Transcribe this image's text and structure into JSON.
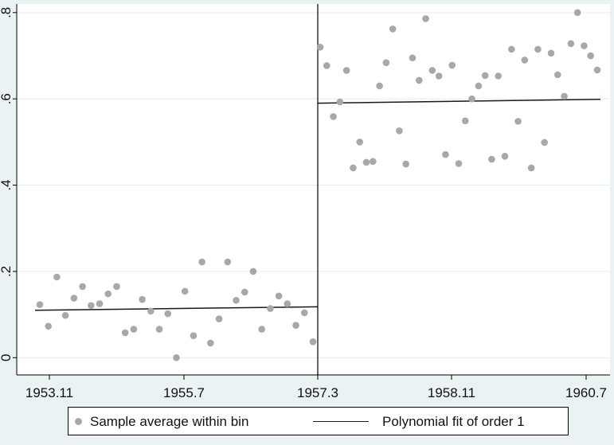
{
  "chart_data": {
    "type": "scatter",
    "title": "",
    "xlabel": "",
    "ylabel": "",
    "x_tick_labels": [
      "1953.11",
      "1955.7",
      "1957.3",
      "1958.11",
      "1960.7"
    ],
    "y_tick_labels": [
      "0",
      ".2",
      ".4",
      ".6",
      ".8"
    ],
    "y_ticks": [
      0,
      0.2,
      0.4,
      0.6,
      0.8
    ],
    "cutoff": "1957.3",
    "grid": true,
    "legend_position": "bottom",
    "legend": [
      {
        "label": "Sample average within bin",
        "marker": "dot"
      },
      {
        "label": "Polynomial fit of order 1",
        "marker": "line"
      }
    ],
    "colors": {
      "points": "#a8a8a8",
      "fit_line": "#1a1a1a",
      "cutoff_line": "#000000",
      "grid": "#e3eded",
      "plot_background": "#ffffff",
      "outer_background": "#eaf2f3"
    },
    "series": [
      {
        "kind": "points",
        "values": [
          0.123,
          0.073,
          0.187,
          0.098,
          0.138,
          0.165,
          0.121,
          0.125,
          0.148,
          0.165,
          0.058,
          0.066,
          0.135,
          0.108,
          0.066,
          0.102,
          0.0,
          0.154,
          0.051,
          0.222,
          0.034,
          0.09,
          0.222,
          0.133,
          0.152,
          0.2,
          0.066,
          0.114,
          0.143,
          0.125,
          0.075,
          0.104,
          0.037,
          0.72,
          0.677,
          0.559,
          0.593,
          0.666,
          0.44,
          0.5,
          0.453,
          0.455,
          0.63,
          0.684,
          0.762,
          0.526,
          0.449,
          0.695,
          0.643,
          0.786,
          0.666,
          0.653,
          0.471,
          0.678,
          0.45,
          0.549,
          0.6,
          0.63,
          0.654,
          0.46,
          0.653,
          0.467,
          0.715,
          0.548,
          0.69,
          0.44,
          0.715,
          0.499,
          0.706,
          0.656,
          0.606,
          0.728,
          0.8,
          0.723,
          0.7,
          0.667
        ]
      },
      {
        "kind": "fit",
        "segments": [
          {
            "values": [
              0.11,
              0.118
            ]
          },
          {
            "values": [
              0.59,
              0.599
            ]
          }
        ]
      }
    ]
  }
}
